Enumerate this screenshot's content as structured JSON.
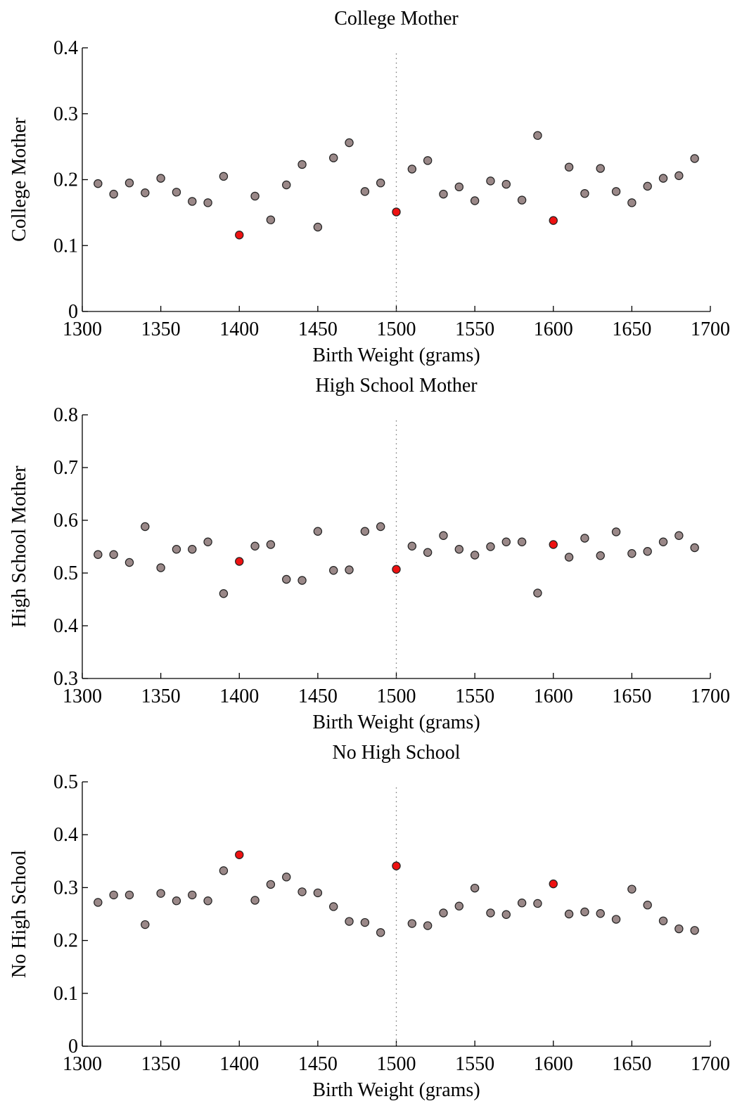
{
  "colors": {
    "point": "#9a8888",
    "highlight": "#ee1111",
    "cutoff_line": "#777777"
  },
  "chart_data": [
    {
      "type": "scatter",
      "title": "College Mother",
      "xlabel": "Birth Weight (grams)",
      "ylabel": "College Mother",
      "xlim": [
        1300,
        1700
      ],
      "ylim": [
        0,
        0.4
      ],
      "xticks": [
        1300,
        1350,
        1400,
        1450,
        1500,
        1550,
        1600,
        1650,
        1700
      ],
      "xtick_labels": [
        "1300",
        "1350",
        "1400",
        "1450",
        "1500",
        "1550",
        "1600",
        "1650",
        "1700"
      ],
      "yticks": [
        0,
        0.1,
        0.2,
        0.3,
        0.4
      ],
      "ytick_labels": [
        "0",
        "0.1",
        "0.2",
        "0.3",
        "0.4"
      ],
      "cutoff_x": 1500,
      "grid": false,
      "x": [
        1310,
        1320,
        1330,
        1340,
        1350,
        1360,
        1370,
        1380,
        1390,
        1400,
        1410,
        1420,
        1430,
        1440,
        1450,
        1460,
        1470,
        1480,
        1490,
        1500,
        1510,
        1520,
        1530,
        1540,
        1550,
        1560,
        1570,
        1580,
        1590,
        1600,
        1610,
        1620,
        1630,
        1640,
        1650,
        1660,
        1670,
        1680,
        1690
      ],
      "y": [
        0.194,
        0.178,
        0.195,
        0.18,
        0.202,
        0.181,
        0.167,
        0.165,
        0.205,
        0.116,
        0.175,
        0.139,
        0.192,
        0.223,
        0.128,
        0.233,
        0.256,
        0.182,
        0.195,
        0.151,
        0.216,
        0.229,
        0.178,
        0.189,
        0.168,
        0.198,
        0.193,
        0.169,
        0.267,
        0.138,
        0.219,
        0.179,
        0.217,
        0.182,
        0.165,
        0.19,
        0.202,
        0.206,
        0.232
      ],
      "highlight_x": [
        1400,
        1500,
        1600
      ]
    },
    {
      "type": "scatter",
      "title": "High School Mother",
      "xlabel": "Birth Weight (grams)",
      "ylabel": "High School Mother",
      "xlim": [
        1300,
        1700
      ],
      "ylim": [
        0.3,
        0.8
      ],
      "xticks": [
        1300,
        1350,
        1400,
        1450,
        1500,
        1550,
        1600,
        1650,
        1700
      ],
      "xtick_labels": [
        "1300",
        "1350",
        "1400",
        "1450",
        "1500",
        "1550",
        "1600",
        "1650",
        "1700"
      ],
      "yticks": [
        0.3,
        0.4,
        0.5,
        0.6,
        0.7,
        0.8
      ],
      "ytick_labels": [
        "0.3",
        "0.4",
        "0.5",
        "0.6",
        "0.7",
        "0.8"
      ],
      "cutoff_x": 1500,
      "grid": false,
      "x": [
        1310,
        1320,
        1330,
        1340,
        1350,
        1360,
        1370,
        1380,
        1390,
        1400,
        1410,
        1420,
        1430,
        1440,
        1450,
        1460,
        1470,
        1480,
        1490,
        1500,
        1510,
        1520,
        1530,
        1540,
        1550,
        1560,
        1570,
        1580,
        1590,
        1600,
        1610,
        1620,
        1630,
        1640,
        1650,
        1660,
        1670,
        1680,
        1690
      ],
      "y": [
        0.535,
        0.535,
        0.52,
        0.588,
        0.51,
        0.545,
        0.545,
        0.559,
        0.461,
        0.522,
        0.551,
        0.554,
        0.488,
        0.486,
        0.579,
        0.505,
        0.506,
        0.579,
        0.588,
        0.507,
        0.551,
        0.539,
        0.571,
        0.545,
        0.534,
        0.55,
        0.559,
        0.559,
        0.462,
        0.554,
        0.53,
        0.566,
        0.533,
        0.578,
        0.537,
        0.541,
        0.559,
        0.571,
        0.548
      ],
      "highlight_x": [
        1400,
        1500,
        1600
      ]
    },
    {
      "type": "scatter",
      "title": "No High School",
      "xlabel": "Birth Weight (grams)",
      "ylabel": "No High School",
      "xlim": [
        1300,
        1700
      ],
      "ylim": [
        0,
        0.5
      ],
      "xticks": [
        1300,
        1350,
        1400,
        1450,
        1500,
        1550,
        1600,
        1650,
        1700
      ],
      "xtick_labels": [
        "1300",
        "1350",
        "1400",
        "1450",
        "1500",
        "1550",
        "1600",
        "1650",
        "1700"
      ],
      "yticks": [
        0,
        0.1,
        0.2,
        0.3,
        0.4,
        0.5
      ],
      "ytick_labels": [
        "0",
        "0.1",
        "0.2",
        "0.3",
        "0.4",
        "0.5"
      ],
      "cutoff_x": 1500,
      "grid": false,
      "x": [
        1310,
        1320,
        1330,
        1340,
        1350,
        1360,
        1370,
        1380,
        1390,
        1400,
        1410,
        1420,
        1430,
        1440,
        1450,
        1460,
        1470,
        1480,
        1490,
        1500,
        1510,
        1520,
        1530,
        1540,
        1550,
        1560,
        1570,
        1580,
        1590,
        1600,
        1610,
        1620,
        1630,
        1640,
        1650,
        1660,
        1670,
        1680,
        1690
      ],
      "y": [
        0.272,
        0.286,
        0.286,
        0.23,
        0.289,
        0.275,
        0.286,
        0.275,
        0.332,
        0.362,
        0.276,
        0.306,
        0.32,
        0.292,
        0.29,
        0.264,
        0.236,
        0.234,
        0.215,
        0.341,
        0.232,
        0.228,
        0.252,
        0.265,
        0.299,
        0.252,
        0.249,
        0.271,
        0.27,
        0.307,
        0.25,
        0.254,
        0.251,
        0.24,
        0.297,
        0.267,
        0.237,
        0.222,
        0.219
      ],
      "highlight_x": [
        1400,
        1500,
        1600
      ]
    }
  ]
}
